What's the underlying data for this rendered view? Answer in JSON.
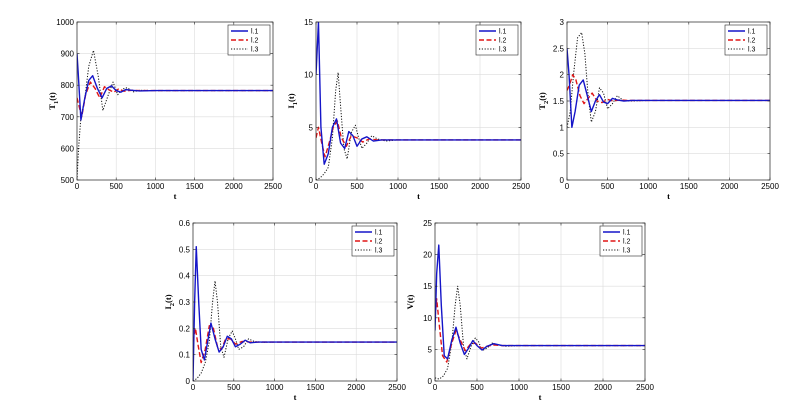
{
  "colors": {
    "l1": "#1515c8",
    "l2": "#e01515",
    "l3": "#111111"
  },
  "chart_data": [
    {
      "type": "line",
      "xlabel": "t",
      "ylabel": "T_1(t)",
      "ylabel_main": "T",
      "ylabel_sub": "1",
      "ylabel_tail": "(t)",
      "xlim": [
        0,
        2500
      ],
      "ylim": [
        500,
        1000
      ],
      "xticks": [
        0,
        500,
        1000,
        1500,
        2000,
        2500
      ],
      "yticks": [
        500,
        600,
        700,
        800,
        900,
        1000
      ],
      "legend_position": "top-right",
      "series": [
        {
          "name": "l.1",
          "style": "solid",
          "x": [
            0,
            15,
            50,
            100,
            150,
            200,
            260,
            320,
            380,
            440,
            500,
            560,
            620,
            700,
            800,
            1000,
            1500,
            2000,
            2500
          ],
          "y": [
            900,
            840,
            690,
            760,
            815,
            830,
            790,
            760,
            790,
            798,
            783,
            778,
            786,
            784,
            782,
            783,
            783,
            783,
            783
          ]
        },
        {
          "name": "l.2",
          "style": "dashed",
          "x": [
            0,
            20,
            60,
            110,
            170,
            230,
            290,
            350,
            410,
            470,
            530,
            600,
            700,
            800,
            1000,
            1500,
            2000,
            2500
          ],
          "y": [
            760,
            740,
            700,
            770,
            810,
            790,
            760,
            795,
            785,
            778,
            788,
            781,
            784,
            783,
            783,
            783,
            783,
            783
          ]
        },
        {
          "name": "l.3",
          "style": "dotted",
          "x": [
            0,
            20,
            50,
            100,
            150,
            210,
            270,
            330,
            400,
            460,
            520,
            580,
            640,
            720,
            800,
            1000,
            1500,
            2000,
            2500
          ],
          "y": [
            500,
            600,
            700,
            760,
            860,
            910,
            830,
            720,
            770,
            810,
            770,
            788,
            792,
            779,
            784,
            783,
            783,
            783,
            783
          ]
        }
      ]
    },
    {
      "type": "line",
      "xlabel": "t",
      "ylabel": "I_1(t)",
      "ylabel_main": "I",
      "ylabel_sub": "1",
      "ylabel_tail": "(t)",
      "xlim": [
        0,
        2500
      ],
      "ylim": [
        0,
        15
      ],
      "xticks": [
        0,
        500,
        1000,
        1500,
        2000,
        2500
      ],
      "yticks": [
        0,
        5,
        10,
        15
      ],
      "legend_position": "top-right",
      "series": [
        {
          "name": "l.1",
          "style": "solid",
          "x": [
            0,
            30,
            60,
            100,
            150,
            200,
            250,
            300,
            350,
            400,
            450,
            500,
            560,
            620,
            700,
            800,
            1000,
            1500,
            2000,
            2500
          ],
          "y": [
            10,
            15,
            5,
            1.5,
            2.5,
            5,
            5.8,
            3.5,
            3.0,
            4.6,
            4.2,
            3.2,
            3.9,
            4.1,
            3.7,
            3.8,
            3.8,
            3.8,
            3.8,
            3.8
          ]
        },
        {
          "name": "l.2",
          "style": "dashed",
          "x": [
            0,
            30,
            70,
            110,
            160,
            210,
            260,
            310,
            370,
            430,
            500,
            570,
            650,
            750,
            1000,
            1500,
            2000,
            2500
          ],
          "y": [
            4,
            5,
            3.5,
            2.2,
            3.5,
            5.0,
            5.6,
            4.0,
            3.2,
            4.2,
            4.0,
            3.6,
            3.9,
            3.8,
            3.8,
            3.8,
            3.8,
            3.8
          ]
        },
        {
          "name": "l.3",
          "style": "dotted",
          "x": [
            0,
            50,
            100,
            150,
            200,
            240,
            270,
            300,
            340,
            380,
            430,
            480,
            520,
            560,
            620,
            680,
            750,
            850,
            1000,
            1500,
            2000,
            2500
          ],
          "y": [
            0,
            0.2,
            0.6,
            1.2,
            4.0,
            8.5,
            10.2,
            7.0,
            3.0,
            2.0,
            4.5,
            5.2,
            4.0,
            3.0,
            3.5,
            4.2,
            3.9,
            3.7,
            3.8,
            3.8,
            3.8,
            3.8
          ]
        }
      ]
    },
    {
      "type": "line",
      "xlabel": "t",
      "ylabel": "T_2(t)",
      "ylabel_main": "T",
      "ylabel_sub": "2",
      "ylabel_tail": "(t)",
      "xlim": [
        0,
        2500
      ],
      "ylim": [
        0,
        3
      ],
      "xticks": [
        0,
        500,
        1000,
        1500,
        2000,
        2500
      ],
      "yticks": [
        0,
        0.5,
        1,
        1.5,
        2,
        2.5,
        3
      ],
      "legend_position": "top-right",
      "series": [
        {
          "name": "l.1",
          "style": "solid",
          "x": [
            0,
            25,
            60,
            100,
            150,
            200,
            250,
            300,
            350,
            400,
            450,
            500,
            560,
            620,
            700,
            800,
            1000,
            1500,
            2000,
            2500
          ],
          "y": [
            2.5,
            2.0,
            1.0,
            1.3,
            1.8,
            1.9,
            1.6,
            1.3,
            1.5,
            1.62,
            1.48,
            1.45,
            1.55,
            1.52,
            1.5,
            1.51,
            1.51,
            1.51,
            1.51,
            1.51
          ]
        },
        {
          "name": "l.2",
          "style": "dashed",
          "x": [
            0,
            30,
            70,
            110,
            160,
            210,
            260,
            310,
            370,
            430,
            500,
            570,
            650,
            750,
            1000,
            1500,
            2000,
            2500
          ],
          "y": [
            1.7,
            1.8,
            2.0,
            1.9,
            1.6,
            1.45,
            1.55,
            1.65,
            1.5,
            1.47,
            1.53,
            1.5,
            1.52,
            1.51,
            1.51,
            1.51,
            1.51,
            1.51
          ]
        },
        {
          "name": "l.3",
          "style": "dotted",
          "x": [
            0,
            40,
            80,
            130,
            180,
            220,
            260,
            300,
            350,
            400,
            450,
            500,
            560,
            620,
            700,
            800,
            1000,
            1500,
            2000,
            2500
          ],
          "y": [
            1.0,
            1.3,
            2.0,
            2.7,
            2.8,
            2.4,
            1.6,
            1.1,
            1.3,
            1.75,
            1.65,
            1.35,
            1.45,
            1.6,
            1.5,
            1.5,
            1.51,
            1.51,
            1.51,
            1.51
          ]
        }
      ]
    },
    {
      "type": "line",
      "xlabel": "t",
      "ylabel": "I_2(t)",
      "ylabel_main": "I",
      "ylabel_sub": "2",
      "ylabel_tail": "(t)",
      "xlim": [
        0,
        2500
      ],
      "ylim": [
        0,
        0.6
      ],
      "xticks": [
        0,
        500,
        1000,
        1500,
        2000,
        2500
      ],
      "yticks": [
        0,
        0.1,
        0.2,
        0.3,
        0.4,
        0.5,
        0.6
      ],
      "legend_position": "top-right",
      "series": [
        {
          "name": "l.1",
          "style": "solid",
          "x": [
            0,
            20,
            40,
            70,
            100,
            140,
            180,
            220,
            270,
            320,
            370,
            420,
            470,
            520,
            580,
            640,
            700,
            800,
            1000,
            1500,
            2000,
            2500
          ],
          "y": [
            0.0,
            0.3,
            0.51,
            0.3,
            0.12,
            0.08,
            0.15,
            0.22,
            0.16,
            0.11,
            0.13,
            0.17,
            0.16,
            0.13,
            0.14,
            0.155,
            0.145,
            0.148,
            0.148,
            0.148,
            0.148,
            0.148
          ]
        },
        {
          "name": "l.2",
          "style": "dashed",
          "x": [
            0,
            30,
            60,
            100,
            150,
            200,
            250,
            300,
            350,
            400,
            460,
            520,
            600,
            700,
            800,
            1000,
            1500,
            2000,
            2500
          ],
          "y": [
            0.15,
            0.2,
            0.14,
            0.07,
            0.12,
            0.21,
            0.2,
            0.13,
            0.12,
            0.16,
            0.16,
            0.14,
            0.15,
            0.148,
            0.148,
            0.148,
            0.148,
            0.148,
            0.148
          ]
        },
        {
          "name": "l.3",
          "style": "dotted",
          "x": [
            0,
            50,
            100,
            150,
            200,
            240,
            270,
            300,
            340,
            380,
            430,
            480,
            520,
            560,
            620,
            680,
            750,
            850,
            1000,
            1500,
            2000,
            2500
          ],
          "y": [
            0.0,
            0.01,
            0.03,
            0.07,
            0.15,
            0.3,
            0.38,
            0.3,
            0.13,
            0.09,
            0.16,
            0.19,
            0.16,
            0.12,
            0.13,
            0.16,
            0.15,
            0.147,
            0.148,
            0.148,
            0.148,
            0.148
          ]
        }
      ]
    },
    {
      "type": "line",
      "xlabel": "t",
      "ylabel": "V(t)",
      "ylabel_main": "V(t)",
      "ylabel_sub": "",
      "ylabel_tail": "",
      "xlim": [
        0,
        2500
      ],
      "ylim": [
        0,
        25
      ],
      "xticks": [
        0,
        500,
        1000,
        1500,
        2000,
        2500
      ],
      "yticks": [
        0,
        5,
        10,
        15,
        20,
        25
      ],
      "legend_position": "top-right",
      "series": [
        {
          "name": "l.1",
          "style": "solid",
          "x": [
            0,
            20,
            45,
            75,
            110,
            150,
            200,
            250,
            300,
            350,
            400,
            450,
            500,
            560,
            620,
            700,
            800,
            1000,
            1500,
            2000,
            2500
          ],
          "y": [
            8,
            17,
            21.5,
            12,
            4,
            3.5,
            6.5,
            8.5,
            6.0,
            4.2,
            5.2,
            6.4,
            5.6,
            4.9,
            5.5,
            5.9,
            5.6,
            5.6,
            5.6,
            5.6,
            5.6
          ]
        },
        {
          "name": "l.2",
          "style": "dashed",
          "x": [
            0,
            20,
            50,
            90,
            140,
            200,
            250,
            300,
            360,
            420,
            480,
            550,
            620,
            700,
            800,
            1000,
            1500,
            2000,
            2500
          ],
          "y": [
            10,
            13,
            9.0,
            4.0,
            3.0,
            6.0,
            8.0,
            6.5,
            4.8,
            5.8,
            6.0,
            5.2,
            5.5,
            5.7,
            5.6,
            5.6,
            5.6,
            5.6,
            5.6
          ]
        },
        {
          "name": "l.3",
          "style": "dotted",
          "x": [
            0,
            50,
            100,
            150,
            200,
            240,
            270,
            300,
            340,
            380,
            430,
            480,
            520,
            560,
            620,
            680,
            750,
            850,
            1000,
            1500,
            2000,
            2500
          ],
          "y": [
            0.5,
            0.3,
            0.8,
            2.0,
            6.0,
            12.0,
            15.0,
            12.0,
            5.5,
            3.5,
            5.5,
            6.8,
            6.2,
            4.8,
            5.2,
            6.0,
            5.7,
            5.5,
            5.6,
            5.6,
            5.6,
            5.6
          ]
        }
      ]
    }
  ]
}
